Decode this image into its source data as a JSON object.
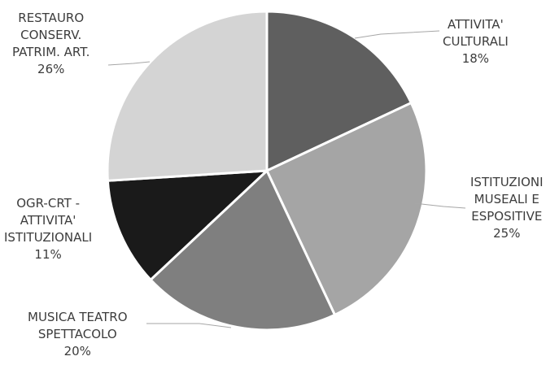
{
  "chart_data": {
    "type": "pie",
    "slices": [
      {
        "label": [
          "ATTIVITA'",
          "CULTURALI"
        ],
        "value": 18,
        "value_label": "18%",
        "color": "#5f5f5f"
      },
      {
        "label": [
          "ISTITUZIONI",
          "MUSEALI E",
          "ESPOSITIVE"
        ],
        "value": 25,
        "value_label": "25%",
        "color": "#a5a5a5"
      },
      {
        "label": [
          "MUSICA TEATRO",
          "SPETTACOLO"
        ],
        "value": 20,
        "value_label": "20%",
        "color": "#7f7f7f"
      },
      {
        "label": [
          "OGR-CRT -",
          "ATTIVITA'",
          "ISTITUZIONALI"
        ],
        "value": 11,
        "value_label": "11%",
        "color": "#1a1a1a"
      },
      {
        "label": [
          "RESTAURO",
          "CONSERV.",
          "PATRIM. ART."
        ],
        "value": 26,
        "value_label": "26%",
        "color": "#d4d4d4"
      }
    ],
    "start_angle": "12 o'clock",
    "direction": "clockwise",
    "legend": "none"
  }
}
